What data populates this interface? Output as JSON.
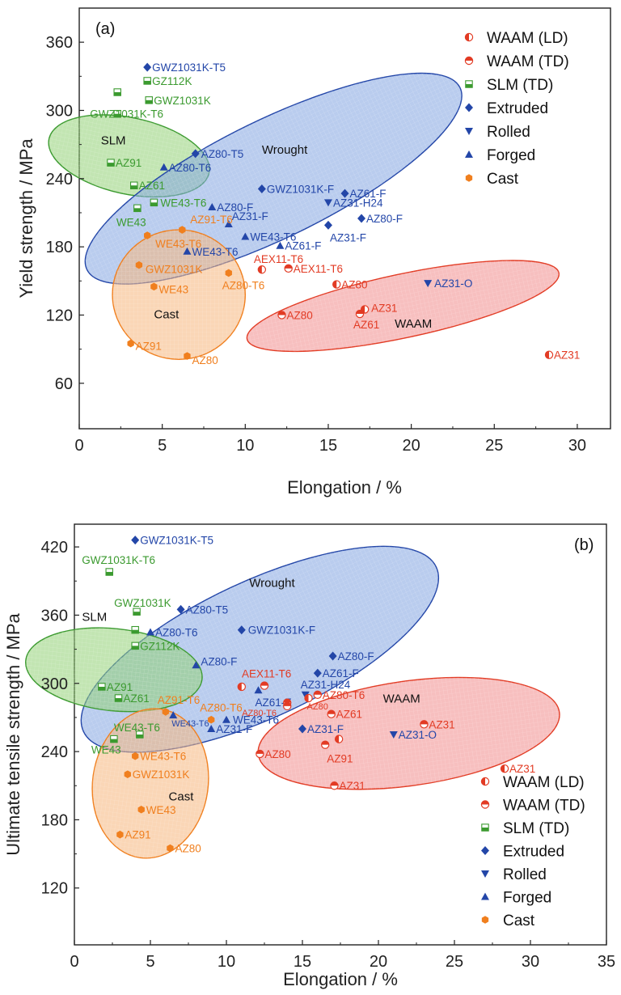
{
  "colors": {
    "waam": "#e23b24",
    "slm": "#3b9a2f",
    "wrought": "#2346a8",
    "cast": "#f07f1e",
    "slm_fill": "#8fcf73",
    "wrought_fill": "#7fa3e0",
    "cast_fill": "#f6b57a",
    "waam_fill": "#f08a8a"
  },
  "chart_data": [
    {
      "type": "scatter",
      "panel_label": "(a)",
      "xlabel": "Elongation / %",
      "ylabel": "Yield strength / MPa",
      "xlim": [
        0,
        32
      ],
      "ylim": [
        20,
        390
      ],
      "xticks": [
        0,
        5,
        10,
        15,
        20,
        25,
        30
      ],
      "yticks": [
        60,
        120,
        180,
        240,
        300,
        360
      ],
      "legend_position": "top-right",
      "legend": [
        {
          "key": "waam_ld",
          "label": "WAAM (LD)"
        },
        {
          "key": "waam_td",
          "label": "WAAM (TD)"
        },
        {
          "key": "slm_td",
          "label": "SLM (TD)"
        },
        {
          "key": "extruded",
          "label": "Extruded"
        },
        {
          "key": "rolled",
          "label": "Rolled"
        },
        {
          "key": "forged",
          "label": "Forged"
        },
        {
          "key": "cast",
          "label": "Cast"
        }
      ],
      "groups": [
        {
          "name": "SLM",
          "color": "slm",
          "cx": 3.0,
          "cy": 260,
          "rx": 2.3,
          "ry": 72,
          "angle": -78,
          "label_x": 1.3,
          "label_y": 270
        },
        {
          "name": "Wrought",
          "color": "wrought",
          "cx": 11.7,
          "cy": 240,
          "rx": 12.5,
          "ry": 52,
          "angle": -26,
          "label_x": 11.0,
          "label_y": 262
        },
        {
          "name": "Cast",
          "color": "cast",
          "cx": 6.0,
          "cy": 138,
          "rx": 4.0,
          "ry": 57,
          "angle": 0,
          "label_x": 4.5,
          "label_y": 117
        },
        {
          "name": "WAAM",
          "color": "waam",
          "cx": 19.5,
          "cy": 128,
          "rx": 9.6,
          "ry": 28,
          "angle": -12,
          "label_x": 19.0,
          "label_y": 109
        }
      ],
      "points": [
        {
          "label": "GWZ1031K-T5",
          "x": 4.1,
          "y": 338,
          "cat": "extruded",
          "color": "wrought",
          "dx": 6,
          "dy": 5
        },
        {
          "label": "GZ112K",
          "x": 4.1,
          "y": 326,
          "cat": "slm_td",
          "color": "slm",
          "dx": 6,
          "dy": 5
        },
        {
          "label": "",
          "x": 2.3,
          "y": 316,
          "cat": "slm_td",
          "color": "slm",
          "dx": 0,
          "dy": 0
        },
        {
          "label": "GWZ1031K",
          "x": 4.2,
          "y": 309,
          "cat": "slm_td",
          "color": "slm",
          "dx": 6,
          "dy": 5
        },
        {
          "label": "GWZ1031K-T6",
          "x": 2.3,
          "y": 297,
          "cat": "slm_td",
          "color": "slm",
          "dx": -34,
          "dy": 5
        },
        {
          "label": "AZ80-T5",
          "x": 7.0,
          "y": 262,
          "cat": "extruded",
          "color": "wrought",
          "dx": 7,
          "dy": 5
        },
        {
          "label": "AZ91",
          "x": 1.9,
          "y": 254,
          "cat": "slm_td",
          "color": "slm",
          "dx": 6,
          "dy": 5
        },
        {
          "label": "AZ80-T6",
          "x": 5.1,
          "y": 250,
          "cat": "forged",
          "color": "wrought",
          "dx": 6,
          "dy": 5
        },
        {
          "label": "AZ61",
          "x": 3.3,
          "y": 234,
          "cat": "slm_td",
          "color": "slm",
          "dx": 6,
          "dy": 5
        },
        {
          "label": "GWZ1031K-F",
          "x": 11.0,
          "y": 231,
          "cat": "extruded",
          "color": "wrought",
          "dx": 6,
          "dy": 5
        },
        {
          "label": "AZ61-F",
          "x": 16.0,
          "y": 227,
          "cat": "extruded",
          "color": "wrought",
          "dx": 6,
          "dy": 5
        },
        {
          "label": "WE43-T6",
          "x": 4.5,
          "y": 219,
          "cat": "slm_td",
          "color": "slm",
          "dx": 8,
          "dy": 5
        },
        {
          "label": "AZ31-H24",
          "x": 15.0,
          "y": 219,
          "cat": "rolled",
          "color": "wrought",
          "dx": 6,
          "dy": 5
        },
        {
          "label": "AZ80-F",
          "x": 8.0,
          "y": 215,
          "cat": "forged",
          "color": "wrought",
          "dx": 6,
          "dy": 5
        },
        {
          "label": "WE43",
          "x": 3.5,
          "y": 214,
          "cat": "slm_td",
          "color": "slm",
          "dx": -26,
          "dy": 22
        },
        {
          "label": "AZ80-F",
          "x": 17.0,
          "y": 205,
          "cat": "extruded",
          "color": "wrought",
          "dx": 6,
          "dy": 5
        },
        {
          "label": "AZ31-F",
          "x": 9.0,
          "y": 200,
          "cat": "forged",
          "color": "wrought",
          "dx": 4,
          "dy": -5
        },
        {
          "label": "AZ31-F",
          "x": 15.0,
          "y": 199,
          "cat": "extruded",
          "color": "wrought",
          "dx": 2,
          "dy": 20
        },
        {
          "label": "AZ91-T6",
          "x": 6.2,
          "y": 195,
          "cat": "cast",
          "color": "cast",
          "dx": 10,
          "dy": -8
        },
        {
          "label": "WE43-T6",
          "x": 10.0,
          "y": 189,
          "cat": "forged",
          "color": "wrought",
          "dx": 6,
          "dy": 5
        },
        {
          "label": "WE43-T6",
          "x": 4.1,
          "y": 190,
          "cat": "cast",
          "color": "cast",
          "dx": 10,
          "dy": 15
        },
        {
          "label": "AZ61-F",
          "x": 12.1,
          "y": 181,
          "cat": "forged",
          "color": "wrought",
          "dx": 6,
          "dy": 5
        },
        {
          "label": "WE43-T6",
          "x": 6.5,
          "y": 176,
          "cat": "forged",
          "color": "wrought",
          "dx": 6,
          "dy": 5
        },
        {
          "label": "GWZ1031K",
          "x": 3.6,
          "y": 164,
          "cat": "cast",
          "color": "cast",
          "dx": 8,
          "dy": 10
        },
        {
          "label": "AEX11-T6",
          "x": 11.0,
          "y": 160,
          "cat": "waam_ld",
          "color": "waam",
          "dx": -10,
          "dy": -8
        },
        {
          "label": "AEX11-T6",
          "x": 12.6,
          "y": 161,
          "cat": "waam_td",
          "color": "waam",
          "dx": 6,
          "dy": 5
        },
        {
          "label": "AZ80-T6",
          "x": 9.0,
          "y": 157,
          "cat": "cast",
          "color": "cast",
          "dx": -8,
          "dy": 20
        },
        {
          "label": "AZ80",
          "x": 15.5,
          "y": 147,
          "cat": "waam_ld",
          "color": "waam",
          "dx": 6,
          "dy": 5
        },
        {
          "label": "WE43",
          "x": 4.5,
          "y": 145,
          "cat": "cast",
          "color": "cast",
          "dx": 6,
          "dy": 8
        },
        {
          "label": "AZ31-O",
          "x": 21.0,
          "y": 148,
          "cat": "rolled",
          "color": "wrought",
          "dx": 8,
          "dy": 5
        },
        {
          "label": "AZ31",
          "x": 17.2,
          "y": 125,
          "cat": "waam_ld",
          "color": "waam",
          "dx": 8,
          "dy": 3
        },
        {
          "label": "AZ61",
          "x": 16.9,
          "y": 121,
          "cat": "waam_td",
          "color": "waam",
          "dx": -8,
          "dy": 18
        },
        {
          "label": "AZ80",
          "x": 12.2,
          "y": 120,
          "cat": "waam_td",
          "color": "waam",
          "dx": 6,
          "dy": 5
        },
        {
          "label": "AZ91",
          "x": 3.1,
          "y": 95,
          "cat": "cast",
          "color": "cast",
          "dx": 6,
          "dy": 8
        },
        {
          "label": "AZ80",
          "x": 6.5,
          "y": 84,
          "cat": "cast",
          "color": "cast",
          "dx": 6,
          "dy": 10
        },
        {
          "label": "AZ31",
          "x": 28.3,
          "y": 85,
          "cat": "waam_ld",
          "color": "waam",
          "dx": 6,
          "dy": 5
        }
      ]
    },
    {
      "type": "scatter",
      "panel_label": "(b)",
      "xlabel": "Elongation / %",
      "ylabel": "Ultimate tensile strength / MPa",
      "xlim": [
        0,
        35
      ],
      "ylim": [
        70,
        440
      ],
      "xticks": [
        0,
        5,
        10,
        15,
        20,
        25,
        30,
        35
      ],
      "yticks": [
        120,
        180,
        240,
        300,
        360,
        420
      ],
      "legend_position": "bottom-right",
      "legend": [
        {
          "key": "waam_ld",
          "label": "WAAM (LD)"
        },
        {
          "key": "waam_td",
          "label": "WAAM (TD)"
        },
        {
          "key": "slm_td",
          "label": "SLM (TD)"
        },
        {
          "key": "extruded",
          "label": "Extruded"
        },
        {
          "key": "rolled",
          "label": "Rolled"
        },
        {
          "key": "forged",
          "label": "Forged"
        },
        {
          "key": "cast",
          "label": "Cast"
        }
      ],
      "groups": [
        {
          "name": "Wrought",
          "color": "wrought",
          "cx": 12.2,
          "cy": 330,
          "rx": 12.8,
          "ry": 60,
          "angle": -25,
          "label_x": 11.5,
          "label_y": 385
        },
        {
          "name": "SLM",
          "color": "slm",
          "cx": 2.6,
          "cy": 312,
          "rx": 2.7,
          "ry": 78,
          "angle": -84,
          "label_x": 0.5,
          "label_y": 355
        },
        {
          "name": "Cast",
          "color": "cast",
          "cx": 5.0,
          "cy": 212,
          "rx": 3.8,
          "ry": 66,
          "angle": 8,
          "label_x": 6.2,
          "label_y": 197
        },
        {
          "name": "WAAM",
          "color": "waam",
          "cx": 22.0,
          "cy": 256,
          "rx": 10.0,
          "ry": 46,
          "angle": -8,
          "label_x": 20.3,
          "label_y": 283
        }
      ],
      "points": [
        {
          "label": "GWZ1031K-T5",
          "x": 4.0,
          "y": 426,
          "cat": "extruded",
          "color": "wrought",
          "dx": 6,
          "dy": 5
        },
        {
          "label": "GWZ1031K-T6",
          "x": 2.3,
          "y": 398,
          "cat": "slm_td",
          "color": "slm",
          "dx": -34,
          "dy": -10
        },
        {
          "label": "AZ80-T5",
          "x": 7.0,
          "y": 365,
          "cat": "extruded",
          "color": "wrought",
          "dx": 6,
          "dy": 5
        },
        {
          "label": "GWZ1031K",
          "x": 4.1,
          "y": 363,
          "cat": "slm_td",
          "color": "slm",
          "dx": -28,
          "dy": -6
        },
        {
          "label": "AZ80-T6",
          "x": 5.0,
          "y": 345,
          "cat": "forged",
          "color": "wrought",
          "dx": 6,
          "dy": 5
        },
        {
          "label": "",
          "x": 4.0,
          "y": 347,
          "cat": "slm_td",
          "color": "slm",
          "dx": 0,
          "dy": 0
        },
        {
          "label": "GWZ1031K-F",
          "x": 11.0,
          "y": 347,
          "cat": "extruded",
          "color": "wrought",
          "dx": 8,
          "dy": 5
        },
        {
          "label": "GZ112K",
          "x": 4.0,
          "y": 333,
          "cat": "slm_td",
          "color": "slm",
          "dx": 6,
          "dy": 5
        },
        {
          "label": "AZ80-F",
          "x": 17.0,
          "y": 324,
          "cat": "extruded",
          "color": "wrought",
          "dx": 6,
          "dy": 5
        },
        {
          "label": "AZ80-F",
          "x": 8.0,
          "y": 316,
          "cat": "forged",
          "color": "wrought",
          "dx": 6,
          "dy": 0
        },
        {
          "label": "AZ61-F",
          "x": 16.0,
          "y": 309,
          "cat": "extruded",
          "color": "wrought",
          "dx": 6,
          "dy": 5
        },
        {
          "label": "AEX11-T6",
          "x": 12.5,
          "y": 298,
          "cat": "waam_td",
          "color": "waam",
          "dx": -28,
          "dy": -10
        },
        {
          "label": "",
          "x": 11.0,
          "y": 297,
          "cat": "waam_ld",
          "color": "waam",
          "dx": 0,
          "dy": 0
        },
        {
          "label": "AZ91",
          "x": 1.8,
          "y": 297,
          "cat": "slm_td",
          "color": "slm",
          "dx": 6,
          "dy": 5
        },
        {
          "label": "AZ61-F",
          "x": 12.1,
          "y": 294,
          "cat": "forged",
          "color": "wrought",
          "dx": -4,
          "dy": 20
        },
        {
          "label": "AZ31-H24",
          "x": 15.2,
          "y": 290,
          "cat": "rolled",
          "color": "wrought",
          "dx": -6,
          "dy": -8
        },
        {
          "label": "AZ80-T6",
          "x": 16.0,
          "y": 290,
          "cat": "waam_td",
          "color": "waam",
          "dx": 6,
          "dy": 5
        },
        {
          "label": "AZ61",
          "x": 2.9,
          "y": 287,
          "cat": "slm_td",
          "color": "slm",
          "dx": 6,
          "dy": 5
        },
        {
          "label": "AZ80",
          "x": 15.4,
          "y": 287,
          "cat": "waam_ld",
          "color": "waam",
          "dx": -2,
          "dy": 14,
          "small": true
        },
        {
          "label": "",
          "x": 14.0,
          "y": 283,
          "cat": "waam_td",
          "color": "waam",
          "dx": 0,
          "dy": 0
        },
        {
          "label": "AZ80-T6",
          "x": 14.0,
          "y": 280,
          "cat": "waam_td",
          "color": "waam",
          "dx": -56,
          "dy": 12,
          "small": true
        },
        {
          "label": "AZ61",
          "x": 16.9,
          "y": 273,
          "cat": "waam_td",
          "color": "waam",
          "dx": 6,
          "dy": 5
        },
        {
          "label": "AZ91-T6",
          "x": 6.0,
          "y": 275,
          "cat": "cast",
          "color": "cast",
          "dx": -10,
          "dy": -10
        },
        {
          "label": "WE43-T6",
          "x": 6.5,
          "y": 272,
          "cat": "forged",
          "color": "wrought",
          "dx": -2,
          "dy": 14,
          "small": true
        },
        {
          "label": "AZ80-T6",
          "x": 9.0,
          "y": 268,
          "cat": "cast",
          "color": "cast",
          "dx": -14,
          "dy": -10
        },
        {
          "label": "WE43-T6",
          "x": 10.0,
          "y": 268,
          "cat": "forged",
          "color": "wrought",
          "dx": 8,
          "dy": 5
        },
        {
          "label": "AZ31-F",
          "x": 9.0,
          "y": 260,
          "cat": "forged",
          "color": "wrought",
          "dx": 6,
          "dy": 5
        },
        {
          "label": "AZ31-F",
          "x": 15.0,
          "y": 260,
          "cat": "extruded",
          "color": "wrought",
          "dx": 6,
          "dy": 5
        },
        {
          "label": "AZ31",
          "x": 23.0,
          "y": 264,
          "cat": "waam_td",
          "color": "waam",
          "dx": 6,
          "dy": 5
        },
        {
          "label": "WE43-T6",
          "x": 4.3,
          "y": 255,
          "cat": "slm_td",
          "color": "slm",
          "dx": -32,
          "dy": -4
        },
        {
          "label": "AZ31-O",
          "x": 21.0,
          "y": 255,
          "cat": "rolled",
          "color": "wrought",
          "dx": 6,
          "dy": 5
        },
        {
          "label": "",
          "x": 17.4,
          "y": 251,
          "cat": "waam_ld",
          "color": "waam",
          "dx": 0,
          "dy": 0
        },
        {
          "label": "WE43",
          "x": 2.6,
          "y": 251,
          "cat": "slm_td",
          "color": "slm",
          "dx": -28,
          "dy": 18
        },
        {
          "label": "AZ91",
          "x": 16.5,
          "y": 246,
          "cat": "waam_td",
          "color": "waam",
          "dx": 2,
          "dy": 22
        },
        {
          "label": "AZ80",
          "x": 12.2,
          "y": 238,
          "cat": "waam_td",
          "color": "waam",
          "dx": 6,
          "dy": 5
        },
        {
          "label": "WE43-T6",
          "x": 4.0,
          "y": 236,
          "cat": "cast",
          "color": "cast",
          "dx": 6,
          "dy": 5
        },
        {
          "label": "AZ31",
          "x": 28.3,
          "y": 225,
          "cat": "waam_ld",
          "color": "waam",
          "dx": 6,
          "dy": 5
        },
        {
          "label": "GWZ1031K",
          "x": 3.5,
          "y": 220,
          "cat": "cast",
          "color": "cast",
          "dx": 6,
          "dy": 5
        },
        {
          "label": "AZ31",
          "x": 17.1,
          "y": 210,
          "cat": "waam_td",
          "color": "waam",
          "dx": 6,
          "dy": 5
        },
        {
          "label": "WE43",
          "x": 4.4,
          "y": 189,
          "cat": "cast",
          "color": "cast",
          "dx": 6,
          "dy": 5
        },
        {
          "label": "AZ91",
          "x": 3.0,
          "y": 167,
          "cat": "cast",
          "color": "cast",
          "dx": 6,
          "dy": 5
        },
        {
          "label": "AZ80",
          "x": 6.3,
          "y": 155,
          "cat": "cast",
          "color": "cast",
          "dx": 6,
          "dy": 5
        }
      ]
    }
  ]
}
